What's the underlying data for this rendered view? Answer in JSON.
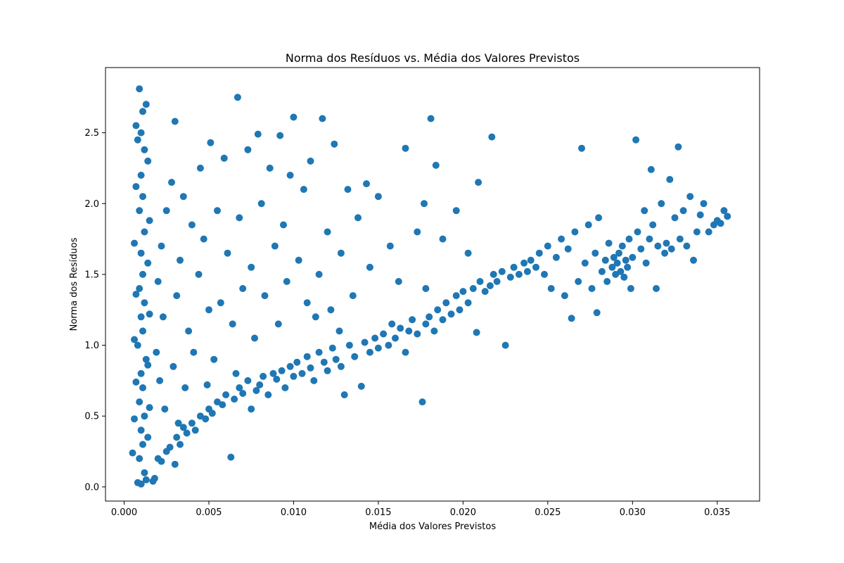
{
  "chart_data": {
    "type": "scatter",
    "title": "Norma dos Resíduos vs. Média dos Valores Previstos",
    "xlabel": "Média dos Valores Previstos",
    "ylabel": "Norma dos Resíduos",
    "xlim": [
      -0.0011,
      0.0375
    ],
    "ylim": [
      -0.1,
      2.96
    ],
    "x_ticks": [
      0.0,
      0.005,
      0.01,
      0.015,
      0.02,
      0.025,
      0.03,
      0.035
    ],
    "x_tick_labels": [
      "0.000",
      "0.005",
      "0.010",
      "0.015",
      "0.020",
      "0.025",
      "0.030",
      "0.035"
    ],
    "y_ticks": [
      0.0,
      0.5,
      1.0,
      1.5,
      2.0,
      2.5
    ],
    "y_tick_labels": [
      "0.0",
      "0.5",
      "1.0",
      "1.5",
      "2.0",
      "2.5"
    ],
    "grid": false,
    "marker_color": "#1f77b4",
    "series": [
      {
        "points": [
          [
            0.0009,
            2.81
          ],
          [
            0.0011,
            2.65
          ],
          [
            0.0013,
            2.7
          ],
          [
            0.001,
            2.5
          ],
          [
            0.0008,
            2.45
          ],
          [
            0.0012,
            2.38
          ],
          [
            0.001,
            2.2
          ],
          [
            0.0011,
            2.05
          ],
          [
            0.0009,
            1.95
          ],
          [
            0.0012,
            1.8
          ],
          [
            0.001,
            1.65
          ],
          [
            0.0011,
            1.5
          ],
          [
            0.0009,
            1.4
          ],
          [
            0.0012,
            1.3
          ],
          [
            0.001,
            1.2
          ],
          [
            0.0011,
            1.1
          ],
          [
            0.0008,
            1.0
          ],
          [
            0.0013,
            0.9
          ],
          [
            0.001,
            0.8
          ],
          [
            0.0011,
            0.7
          ],
          [
            0.0009,
            0.6
          ],
          [
            0.0012,
            0.5
          ],
          [
            0.001,
            0.4
          ],
          [
            0.0011,
            0.3
          ],
          [
            0.0009,
            0.2
          ],
          [
            0.0012,
            0.1
          ],
          [
            0.0008,
            0.03
          ],
          [
            0.001,
            0.02
          ],
          [
            0.0013,
            0.05
          ],
          [
            0.0007,
            2.55
          ],
          [
            0.0014,
            2.3
          ],
          [
            0.0007,
            2.12
          ],
          [
            0.0015,
            1.88
          ],
          [
            0.0006,
            1.72
          ],
          [
            0.0014,
            1.58
          ],
          [
            0.0007,
            1.36
          ],
          [
            0.0015,
            1.22
          ],
          [
            0.0006,
            1.04
          ],
          [
            0.0014,
            0.86
          ],
          [
            0.0007,
            0.74
          ],
          [
            0.0015,
            0.56
          ],
          [
            0.0006,
            0.48
          ],
          [
            0.0014,
            0.35
          ],
          [
            0.0017,
            0.04
          ],
          [
            0.0018,
            0.06
          ],
          [
            0.0005,
            0.24
          ],
          [
            0.003,
            2.58
          ],
          [
            0.0067,
            2.75
          ],
          [
            0.01,
            2.61
          ],
          [
            0.0117,
            2.6
          ],
          [
            0.0181,
            2.6
          ],
          [
            0.0217,
            2.47
          ],
          [
            0.0051,
            2.43
          ],
          [
            0.0079,
            2.49
          ],
          [
            0.0092,
            2.48
          ],
          [
            0.0124,
            2.42
          ],
          [
            0.0143,
            2.14
          ],
          [
            0.0166,
            2.39
          ],
          [
            0.0184,
            2.27
          ],
          [
            0.0209,
            2.15
          ],
          [
            0.0035,
            2.05
          ],
          [
            0.0045,
            2.25
          ],
          [
            0.0059,
            2.32
          ],
          [
            0.0073,
            2.38
          ],
          [
            0.0086,
            2.25
          ],
          [
            0.0098,
            2.2
          ],
          [
            0.011,
            2.3
          ],
          [
            0.0132,
            2.1
          ],
          [
            0.015,
            2.05
          ],
          [
            0.0177,
            2.0
          ],
          [
            0.0196,
            1.95
          ],
          [
            0.0025,
            1.95
          ],
          [
            0.0028,
            2.15
          ],
          [
            0.004,
            1.85
          ],
          [
            0.0055,
            1.95
          ],
          [
            0.0068,
            1.9
          ],
          [
            0.0081,
            2.0
          ],
          [
            0.0094,
            1.85
          ],
          [
            0.0106,
            2.1
          ],
          [
            0.012,
            1.8
          ],
          [
            0.0138,
            1.9
          ],
          [
            0.0157,
            1.7
          ],
          [
            0.0173,
            1.8
          ],
          [
            0.0188,
            1.75
          ],
          [
            0.0203,
            1.65
          ],
          [
            0.0022,
            1.7
          ],
          [
            0.0033,
            1.6
          ],
          [
            0.0047,
            1.75
          ],
          [
            0.0061,
            1.65
          ],
          [
            0.0075,
            1.55
          ],
          [
            0.0089,
            1.7
          ],
          [
            0.0103,
            1.6
          ],
          [
            0.0115,
            1.5
          ],
          [
            0.0128,
            1.65
          ],
          [
            0.0145,
            1.55
          ],
          [
            0.0162,
            1.45
          ],
          [
            0.0178,
            1.4
          ],
          [
            0.002,
            1.45
          ],
          [
            0.0031,
            1.35
          ],
          [
            0.0044,
            1.5
          ],
          [
            0.0057,
            1.3
          ],
          [
            0.007,
            1.4
          ],
          [
            0.0083,
            1.35
          ],
          [
            0.0096,
            1.45
          ],
          [
            0.0108,
            1.3
          ],
          [
            0.0122,
            1.25
          ],
          [
            0.0135,
            1.35
          ],
          [
            0.0023,
            1.2
          ],
          [
            0.0038,
            1.1
          ],
          [
            0.005,
            1.25
          ],
          [
            0.0064,
            1.15
          ],
          [
            0.0077,
            1.05
          ],
          [
            0.0091,
            1.15
          ],
          [
            0.0113,
            1.2
          ],
          [
            0.0127,
            1.1
          ],
          [
            0.0019,
            0.95
          ],
          [
            0.0029,
            0.85
          ],
          [
            0.0041,
            0.95
          ],
          [
            0.0053,
            0.9
          ],
          [
            0.0066,
            0.8
          ],
          [
            0.0021,
            0.75
          ],
          [
            0.0036,
            0.7
          ],
          [
            0.0024,
            0.55
          ],
          [
            0.0049,
            0.72
          ],
          [
            0.0032,
            0.45
          ],
          [
            0.002,
            0.2
          ],
          [
            0.0022,
            0.18
          ],
          [
            0.0025,
            0.25
          ],
          [
            0.0027,
            0.28
          ],
          [
            0.003,
            0.16
          ],
          [
            0.0031,
            0.35
          ],
          [
            0.0033,
            0.3
          ],
          [
            0.0035,
            0.42
          ],
          [
            0.0037,
            0.38
          ],
          [
            0.004,
            0.45
          ],
          [
            0.0042,
            0.4
          ],
          [
            0.0045,
            0.5
          ],
          [
            0.0048,
            0.48
          ],
          [
            0.005,
            0.55
          ],
          [
            0.0052,
            0.52
          ],
          [
            0.0055,
            0.6
          ],
          [
            0.0058,
            0.58
          ],
          [
            0.006,
            0.65
          ],
          [
            0.0063,
            0.21
          ],
          [
            0.0065,
            0.62
          ],
          [
            0.0068,
            0.7
          ],
          [
            0.007,
            0.66
          ],
          [
            0.0073,
            0.75
          ],
          [
            0.0075,
            0.55
          ],
          [
            0.0078,
            0.68
          ],
          [
            0.008,
            0.72
          ],
          [
            0.0082,
            0.78
          ],
          [
            0.0085,
            0.65
          ],
          [
            0.0088,
            0.8
          ],
          [
            0.009,
            0.76
          ],
          [
            0.0093,
            0.82
          ],
          [
            0.0095,
            0.7
          ],
          [
            0.0098,
            0.85
          ],
          [
            0.01,
            0.78
          ],
          [
            0.0102,
            0.88
          ],
          [
            0.0105,
            0.8
          ],
          [
            0.0108,
            0.92
          ],
          [
            0.011,
            0.84
          ],
          [
            0.0112,
            0.75
          ],
          [
            0.0115,
            0.95
          ],
          [
            0.0118,
            0.88
          ],
          [
            0.012,
            0.82
          ],
          [
            0.0123,
            0.98
          ],
          [
            0.0125,
            0.9
          ],
          [
            0.0128,
            0.85
          ],
          [
            0.013,
            0.65
          ],
          [
            0.0133,
            1.0
          ],
          [
            0.0136,
            0.92
          ],
          [
            0.014,
            0.71
          ],
          [
            0.0142,
            1.02
          ],
          [
            0.0145,
            0.95
          ],
          [
            0.0148,
            1.05
          ],
          [
            0.015,
            0.98
          ],
          [
            0.0153,
            1.08
          ],
          [
            0.0156,
            1.0
          ],
          [
            0.0158,
            1.15
          ],
          [
            0.016,
            1.05
          ],
          [
            0.0163,
            1.12
          ],
          [
            0.0166,
            0.95
          ],
          [
            0.0168,
            1.1
          ],
          [
            0.017,
            1.18
          ],
          [
            0.0173,
            1.08
          ],
          [
            0.0176,
            0.6
          ],
          [
            0.0178,
            1.15
          ],
          [
            0.018,
            1.2
          ],
          [
            0.0183,
            1.1
          ],
          [
            0.0185,
            1.25
          ],
          [
            0.0188,
            1.18
          ],
          [
            0.019,
            1.3
          ],
          [
            0.0193,
            1.22
          ],
          [
            0.0196,
            1.35
          ],
          [
            0.0198,
            1.25
          ],
          [
            0.02,
            1.38
          ],
          [
            0.0203,
            1.3
          ],
          [
            0.0206,
            1.4
          ],
          [
            0.0208,
            1.09
          ],
          [
            0.021,
            1.45
          ],
          [
            0.0213,
            1.38
          ],
          [
            0.0216,
            1.42
          ],
          [
            0.0218,
            1.5
          ],
          [
            0.022,
            1.45
          ],
          [
            0.0223,
            1.52
          ],
          [
            0.0225,
            1.0
          ],
          [
            0.0228,
            1.48
          ],
          [
            0.023,
            1.55
          ],
          [
            0.0233,
            1.5
          ],
          [
            0.0236,
            1.58
          ],
          [
            0.0238,
            1.52
          ],
          [
            0.024,
            1.6
          ],
          [
            0.0243,
            1.55
          ],
          [
            0.0245,
            1.65
          ],
          [
            0.0248,
            1.5
          ],
          [
            0.025,
            1.7
          ],
          [
            0.0252,
            1.4
          ],
          [
            0.0255,
            1.62
          ],
          [
            0.0258,
            1.75
          ],
          [
            0.026,
            1.35
          ],
          [
            0.0262,
            1.68
          ],
          [
            0.0264,
            1.19
          ],
          [
            0.0266,
            1.8
          ],
          [
            0.0268,
            1.45
          ],
          [
            0.027,
            2.39
          ],
          [
            0.0272,
            1.58
          ],
          [
            0.0274,
            1.85
          ],
          [
            0.0276,
            1.4
          ],
          [
            0.0278,
            1.65
          ],
          [
            0.0279,
            1.23
          ],
          [
            0.028,
            1.9
          ],
          [
            0.0282,
            1.52
          ],
          [
            0.0284,
            1.6
          ],
          [
            0.0285,
            1.45
          ],
          [
            0.0286,
            1.72
          ],
          [
            0.0288,
            1.55
          ],
          [
            0.0289,
            1.62
          ],
          [
            0.029,
            1.5
          ],
          [
            0.0291,
            1.58
          ],
          [
            0.0292,
            1.65
          ],
          [
            0.0293,
            1.52
          ],
          [
            0.0294,
            1.7
          ],
          [
            0.0295,
            1.48
          ],
          [
            0.0296,
            1.6
          ],
          [
            0.0297,
            1.55
          ],
          [
            0.0298,
            1.75
          ],
          [
            0.0299,
            1.4
          ],
          [
            0.03,
            1.62
          ],
          [
            0.0302,
            2.45
          ],
          [
            0.0303,
            1.8
          ],
          [
            0.0305,
            1.68
          ],
          [
            0.0307,
            1.95
          ],
          [
            0.0308,
            1.58
          ],
          [
            0.031,
            1.75
          ],
          [
            0.0311,
            2.24
          ],
          [
            0.0312,
            1.85
          ],
          [
            0.0314,
            1.4
          ],
          [
            0.0315,
            1.7
          ],
          [
            0.0317,
            2.0
          ],
          [
            0.0319,
            1.65
          ],
          [
            0.032,
            1.72
          ],
          [
            0.0322,
            2.17
          ],
          [
            0.0323,
            1.68
          ],
          [
            0.0325,
            1.9
          ],
          [
            0.0327,
            2.4
          ],
          [
            0.0328,
            1.75
          ],
          [
            0.033,
            1.95
          ],
          [
            0.0332,
            1.7
          ],
          [
            0.0334,
            2.05
          ],
          [
            0.0336,
            1.6
          ],
          [
            0.0338,
            1.8
          ],
          [
            0.034,
            1.92
          ],
          [
            0.0342,
            2.0
          ],
          [
            0.0345,
            1.8
          ],
          [
            0.0348,
            1.85
          ],
          [
            0.035,
            1.88
          ],
          [
            0.0352,
            1.86
          ],
          [
            0.0354,
            1.95
          ],
          [
            0.0356,
            1.91
          ]
        ]
      }
    ]
  }
}
